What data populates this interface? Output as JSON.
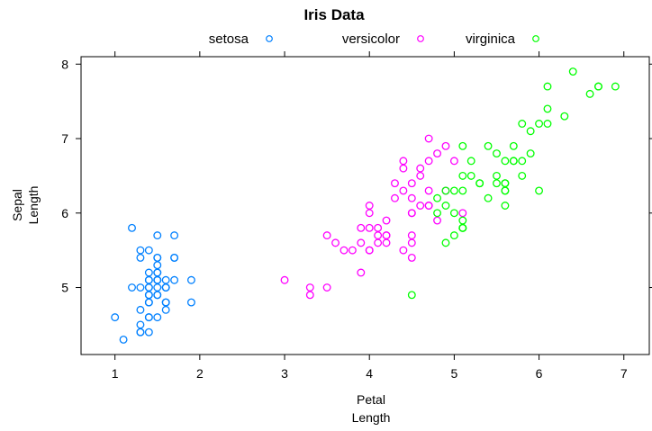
{
  "chart_data": {
    "type": "scatter",
    "title": "Iris Data",
    "xlabel": [
      "Petal",
      "Length"
    ],
    "ylabel": [
      "Sepal",
      "Length"
    ],
    "xlim": [
      0.6,
      7.3
    ],
    "ylim": [
      4.1,
      8.1
    ],
    "x_ticks": [
      1,
      2,
      3,
      4,
      5,
      6,
      7
    ],
    "y_ticks": [
      5,
      6,
      7,
      8
    ],
    "grid": false,
    "legend_position": "top",
    "series": [
      {
        "name": "setosa",
        "color": "#0080ff",
        "points": [
          [
            1.4,
            5.1
          ],
          [
            1.4,
            4.9
          ],
          [
            1.3,
            4.7
          ],
          [
            1.5,
            4.6
          ],
          [
            1.4,
            5.0
          ],
          [
            1.7,
            5.4
          ],
          [
            1.4,
            4.6
          ],
          [
            1.5,
            5.0
          ],
          [
            1.4,
            4.4
          ],
          [
            1.5,
            4.9
          ],
          [
            1.5,
            5.4
          ],
          [
            1.6,
            4.8
          ],
          [
            1.4,
            4.8
          ],
          [
            1.1,
            4.3
          ],
          [
            1.2,
            5.8
          ],
          [
            1.5,
            5.7
          ],
          [
            1.3,
            5.4
          ],
          [
            1.4,
            5.1
          ],
          [
            1.7,
            5.7
          ],
          [
            1.5,
            5.1
          ],
          [
            1.7,
            5.4
          ],
          [
            1.5,
            5.1
          ],
          [
            1.0,
            4.6
          ],
          [
            1.7,
            5.1
          ],
          [
            1.9,
            4.8
          ],
          [
            1.6,
            5.0
          ],
          [
            1.6,
            5.0
          ],
          [
            1.5,
            5.2
          ],
          [
            1.4,
            5.2
          ],
          [
            1.6,
            4.7
          ],
          [
            1.6,
            4.8
          ],
          [
            1.5,
            5.4
          ],
          [
            1.5,
            5.2
          ],
          [
            1.4,
            5.5
          ],
          [
            1.5,
            4.9
          ],
          [
            1.2,
            5.0
          ],
          [
            1.3,
            5.5
          ],
          [
            1.4,
            4.9
          ],
          [
            1.3,
            4.4
          ],
          [
            1.5,
            5.1
          ],
          [
            1.3,
            5.0
          ],
          [
            1.3,
            4.5
          ],
          [
            1.3,
            4.4
          ],
          [
            1.6,
            5.0
          ],
          [
            1.9,
            5.1
          ],
          [
            1.4,
            4.8
          ],
          [
            1.6,
            5.1
          ],
          [
            1.4,
            4.6
          ],
          [
            1.5,
            5.3
          ],
          [
            1.4,
            5.0
          ]
        ]
      },
      {
        "name": "versicolor",
        "color": "#ff00ff",
        "points": [
          [
            4.7,
            7.0
          ],
          [
            4.5,
            6.4
          ],
          [
            4.9,
            6.9
          ],
          [
            4.0,
            5.5
          ],
          [
            4.6,
            6.5
          ],
          [
            4.5,
            5.7
          ],
          [
            4.7,
            6.3
          ],
          [
            3.3,
            4.9
          ],
          [
            4.6,
            6.6
          ],
          [
            3.9,
            5.2
          ],
          [
            3.5,
            5.0
          ],
          [
            4.2,
            5.9
          ],
          [
            4.0,
            6.0
          ],
          [
            4.7,
            6.1
          ],
          [
            3.6,
            5.6
          ],
          [
            4.4,
            6.7
          ],
          [
            4.5,
            5.6
          ],
          [
            4.1,
            5.8
          ],
          [
            4.5,
            6.2
          ],
          [
            3.9,
            5.6
          ],
          [
            4.8,
            5.9
          ],
          [
            4.0,
            6.1
          ],
          [
            4.9,
            6.3
          ],
          [
            4.7,
            6.1
          ],
          [
            4.3,
            6.4
          ],
          [
            4.4,
            6.6
          ],
          [
            4.8,
            6.8
          ],
          [
            5.0,
            6.7
          ],
          [
            4.5,
            6.0
          ],
          [
            3.5,
            5.7
          ],
          [
            3.8,
            5.5
          ],
          [
            3.7,
            5.5
          ],
          [
            3.9,
            5.8
          ],
          [
            5.1,
            6.0
          ],
          [
            4.5,
            5.4
          ],
          [
            4.5,
            6.0
          ],
          [
            4.7,
            6.7
          ],
          [
            4.4,
            6.3
          ],
          [
            4.1,
            5.6
          ],
          [
            4.0,
            5.5
          ],
          [
            4.4,
            5.5
          ],
          [
            4.6,
            6.1
          ],
          [
            4.0,
            5.8
          ],
          [
            3.3,
            5.0
          ],
          [
            4.2,
            5.6
          ],
          [
            4.2,
            5.7
          ],
          [
            4.2,
            5.7
          ],
          [
            4.3,
            6.2
          ],
          [
            3.0,
            5.1
          ],
          [
            4.1,
            5.7
          ]
        ]
      },
      {
        "name": "virginica",
        "color": "#00ff00",
        "points": [
          [
            6.0,
            6.3
          ],
          [
            5.1,
            5.8
          ],
          [
            5.9,
            7.1
          ],
          [
            5.6,
            6.3
          ],
          [
            5.8,
            6.5
          ],
          [
            6.6,
            7.6
          ],
          [
            4.5,
            4.9
          ],
          [
            6.3,
            7.3
          ],
          [
            5.8,
            6.7
          ],
          [
            6.1,
            7.2
          ],
          [
            5.1,
            6.5
          ],
          [
            5.3,
            6.4
          ],
          [
            5.5,
            6.8
          ],
          [
            5.0,
            5.7
          ],
          [
            5.1,
            5.8
          ],
          [
            5.3,
            6.4
          ],
          [
            5.5,
            6.5
          ],
          [
            6.7,
            7.7
          ],
          [
            6.9,
            7.7
          ],
          [
            5.0,
            6.0
          ],
          [
            5.7,
            6.9
          ],
          [
            4.9,
            5.6
          ],
          [
            6.7,
            7.7
          ],
          [
            4.9,
            6.3
          ],
          [
            5.7,
            6.7
          ],
          [
            6.0,
            7.2
          ],
          [
            4.8,
            6.2
          ],
          [
            4.9,
            6.1
          ],
          [
            5.6,
            6.4
          ],
          [
            5.8,
            7.2
          ],
          [
            6.1,
            7.4
          ],
          [
            6.4,
            7.9
          ],
          [
            5.6,
            6.4
          ],
          [
            5.1,
            6.3
          ],
          [
            5.6,
            6.1
          ],
          [
            6.1,
            7.7
          ],
          [
            5.6,
            6.3
          ],
          [
            5.5,
            6.4
          ],
          [
            4.8,
            6.0
          ],
          [
            5.4,
            6.9
          ],
          [
            5.6,
            6.7
          ],
          [
            5.1,
            6.9
          ],
          [
            5.1,
            5.8
          ],
          [
            5.9,
            6.8
          ],
          [
            5.7,
            6.7
          ],
          [
            5.2,
            6.7
          ],
          [
            5.0,
            6.3
          ],
          [
            5.2,
            6.5
          ],
          [
            5.4,
            6.2
          ],
          [
            5.1,
            5.9
          ]
        ]
      }
    ]
  }
}
